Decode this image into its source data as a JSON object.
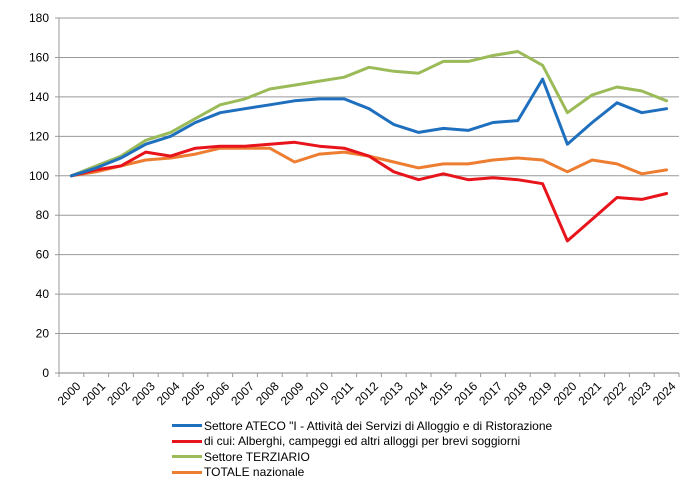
{
  "chart_data": {
    "type": "line",
    "title": "",
    "xlabel": "",
    "ylabel": "",
    "ylim": [
      0,
      180
    ],
    "yticks": [
      "0",
      "20",
      "40",
      "60",
      "80",
      "100",
      "120",
      "140",
      "160",
      "180"
    ],
    "grid": true,
    "legend_position": "bottom",
    "categories": [
      "2000",
      "2001",
      "2002",
      "2003",
      "2004",
      "2005",
      "2006",
      "2007",
      "2008",
      "2009",
      "2010",
      "2011",
      "2012",
      "2013",
      "2014",
      "2015",
      "2016",
      "2017",
      "2018",
      "2019",
      "2020",
      "2021",
      "2022",
      "2023",
      "2024"
    ],
    "series": [
      {
        "name": "Settore ATECO \"I - Attività dei Servizi di Alloggio e di Ristorazione",
        "color": "#1f6fbf",
        "values": [
          100,
          104,
          109,
          116,
          120,
          127,
          132,
          134,
          136,
          138,
          139,
          139,
          134,
          126,
          122,
          124,
          123,
          127,
          128,
          149,
          116,
          127,
          137,
          132,
          134
        ]
      },
      {
        "name": "di cui:  Alberghi, campeggi ed altri alloggi per brevi soggiorni",
        "color": "#e8141b",
        "values": [
          100,
          103,
          105,
          112,
          110,
          114,
          115,
          115,
          116,
          117,
          115,
          114,
          110,
          102,
          98,
          101,
          98,
          99,
          98,
          96,
          67,
          78,
          89,
          88,
          91
        ]
      },
      {
        "name": "Settore TERZIARIO",
        "color": "#9bbb59",
        "values": [
          100,
          105,
          110,
          118,
          122,
          129,
          136,
          139,
          144,
          146,
          148,
          150,
          155,
          153,
          152,
          158,
          158,
          161,
          163,
          156,
          132,
          141,
          145,
          143,
          138
        ]
      },
      {
        "name": "TOTALE nazionale",
        "color": "#ed7d31",
        "values": [
          100,
          102,
          105,
          108,
          109,
          111,
          114,
          114,
          114,
          107,
          111,
          112,
          110,
          107,
          104,
          106,
          106,
          108,
          109,
          108,
          102,
          108,
          106,
          101,
          103
        ]
      }
    ]
  }
}
